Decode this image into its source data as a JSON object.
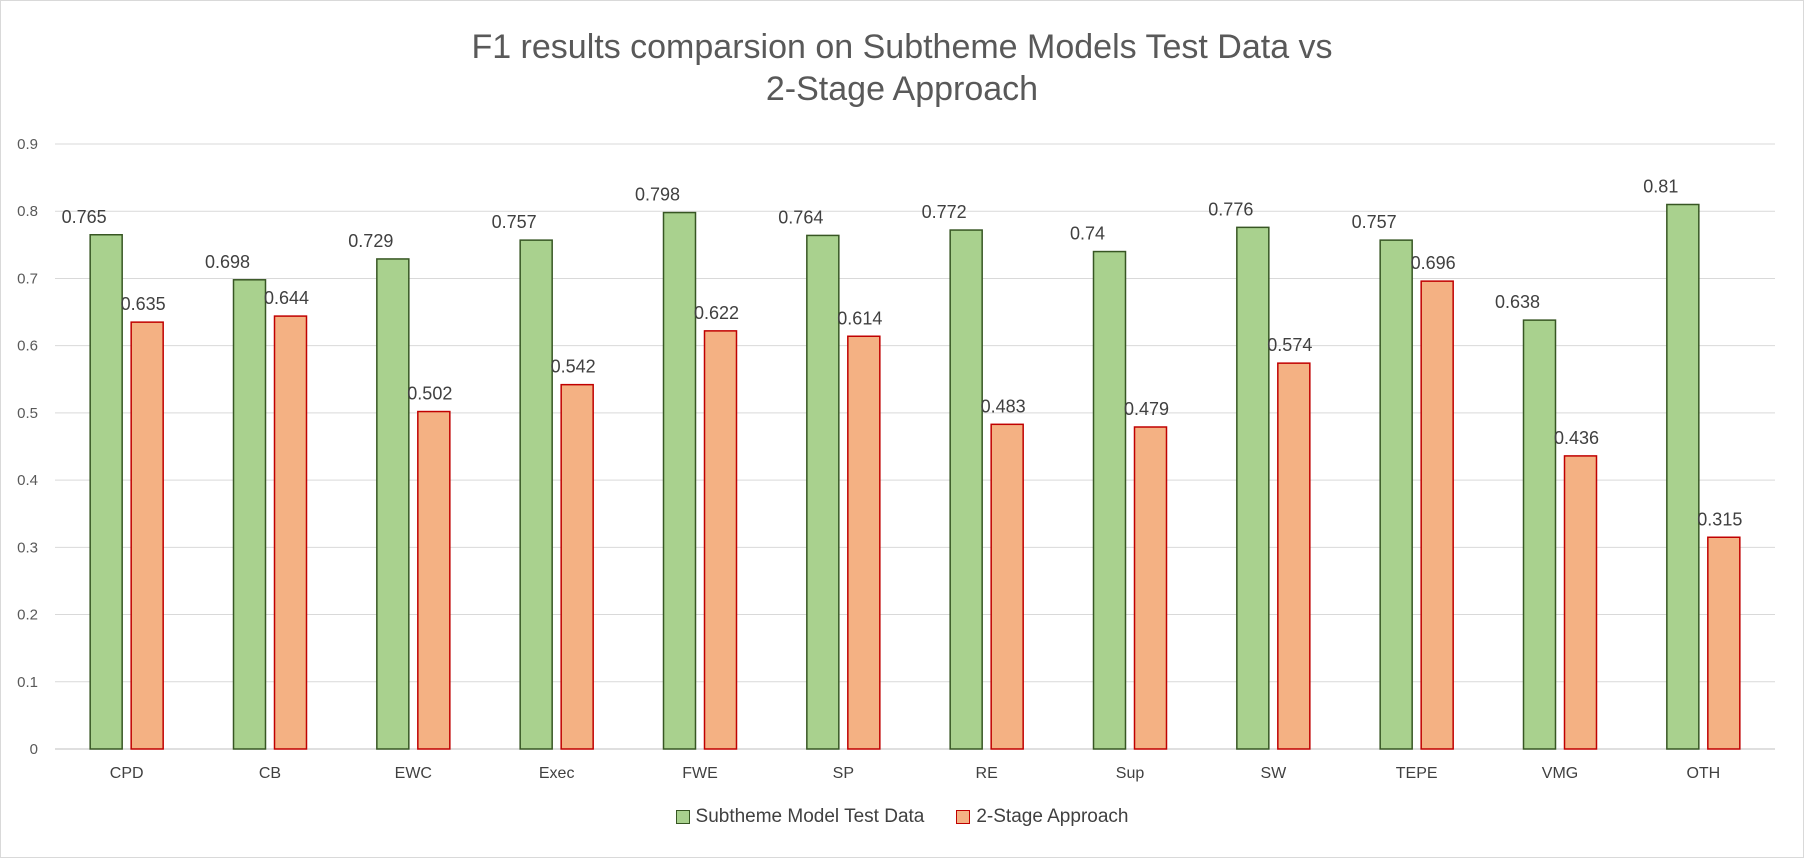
{
  "chart_data": {
    "type": "bar",
    "title_line1": "F1 results comparsion on Subtheme Models Test Data vs",
    "title_line2": "2-Stage Approach",
    "xlabel": "",
    "ylabel": "",
    "ylim": [
      0,
      0.9
    ],
    "yticks": [
      "0",
      "0.1",
      "0.2",
      "0.3",
      "0.4",
      "0.5",
      "0.6",
      "0.7",
      "0.8",
      "0.9"
    ],
    "grid": true,
    "legend_position": "bottom",
    "categories": [
      "CPD",
      "CB",
      "EWC",
      "Exec",
      "FWE",
      "SP",
      "RE",
      "Sup",
      "SW",
      "TEPE",
      "VMG",
      "OTH"
    ],
    "series": [
      {
        "name": "Subtheme Model Test Data",
        "fill": "#a9d18e",
        "stroke": "#375623",
        "values": [
          0.765,
          0.698,
          0.729,
          0.757,
          0.798,
          0.764,
          0.772,
          0.74,
          0.776,
          0.757,
          0.638,
          0.81
        ]
      },
      {
        "name": "2-Stage Approach",
        "fill": "#f4b183",
        "stroke": "#c00000",
        "values": [
          0.635,
          0.644,
          0.502,
          0.542,
          0.622,
          0.614,
          0.483,
          0.479,
          0.574,
          0.696,
          0.436,
          0.315
        ]
      }
    ]
  }
}
